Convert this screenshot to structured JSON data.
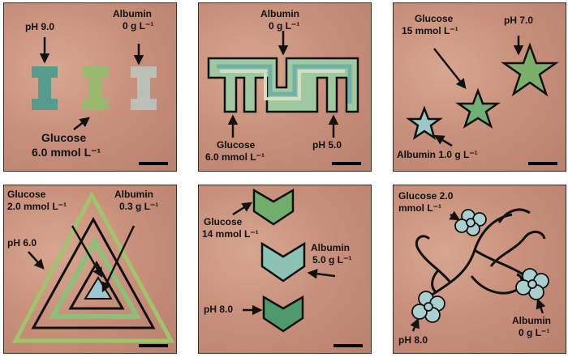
{
  "panels": [
    {
      "labels": {
        "ph": "pH 9.0",
        "albumin_1": "Albumin",
        "albumin_2": "0 g L⁻¹",
        "glucose_1": "Glucose",
        "glucose_2": "6.0 mmol L⁻¹"
      }
    },
    {
      "labels": {
        "albumin_1": "Albumin",
        "albumin_2": "0 g L⁻¹",
        "glucose_1": "Glucose",
        "glucose_2": "6.0 mmol L⁻¹",
        "ph": "pH 5.0"
      }
    },
    {
      "labels": {
        "glucose_1": "Glucose",
        "glucose_2": "15 mmol L⁻¹",
        "ph": "pH 7.0",
        "albumin": "Albumin 1.0 g L⁻¹"
      }
    },
    {
      "labels": {
        "glucose_1": "Glucose",
        "glucose_2": "2.0 mmol L⁻¹",
        "albumin_1": "Albumin",
        "albumin_2": "0.3 g L⁻¹",
        "ph": "pH 6.0"
      }
    },
    {
      "labels": {
        "glucose_1": "Glucose",
        "glucose_2": "14 mmol L⁻¹",
        "albumin_1": "Albumin",
        "albumin_2": "5.0 g L⁻¹",
        "ph": "pH 8.0"
      }
    },
    {
      "labels": {
        "glucose_1": "Glucose 2.0",
        "glucose_2": "mmol L⁻¹",
        "ph": "pH 8.0",
        "albumin_1": "Albumin",
        "albumin_2": "0 g L⁻¹"
      }
    }
  ],
  "colors": {
    "skin": "#c9917c",
    "ph_blue_green": "#3f9b8f",
    "glucose_green": "#8fc06a",
    "albumin_light": "#b9c8c0",
    "ink": "#111111"
  }
}
